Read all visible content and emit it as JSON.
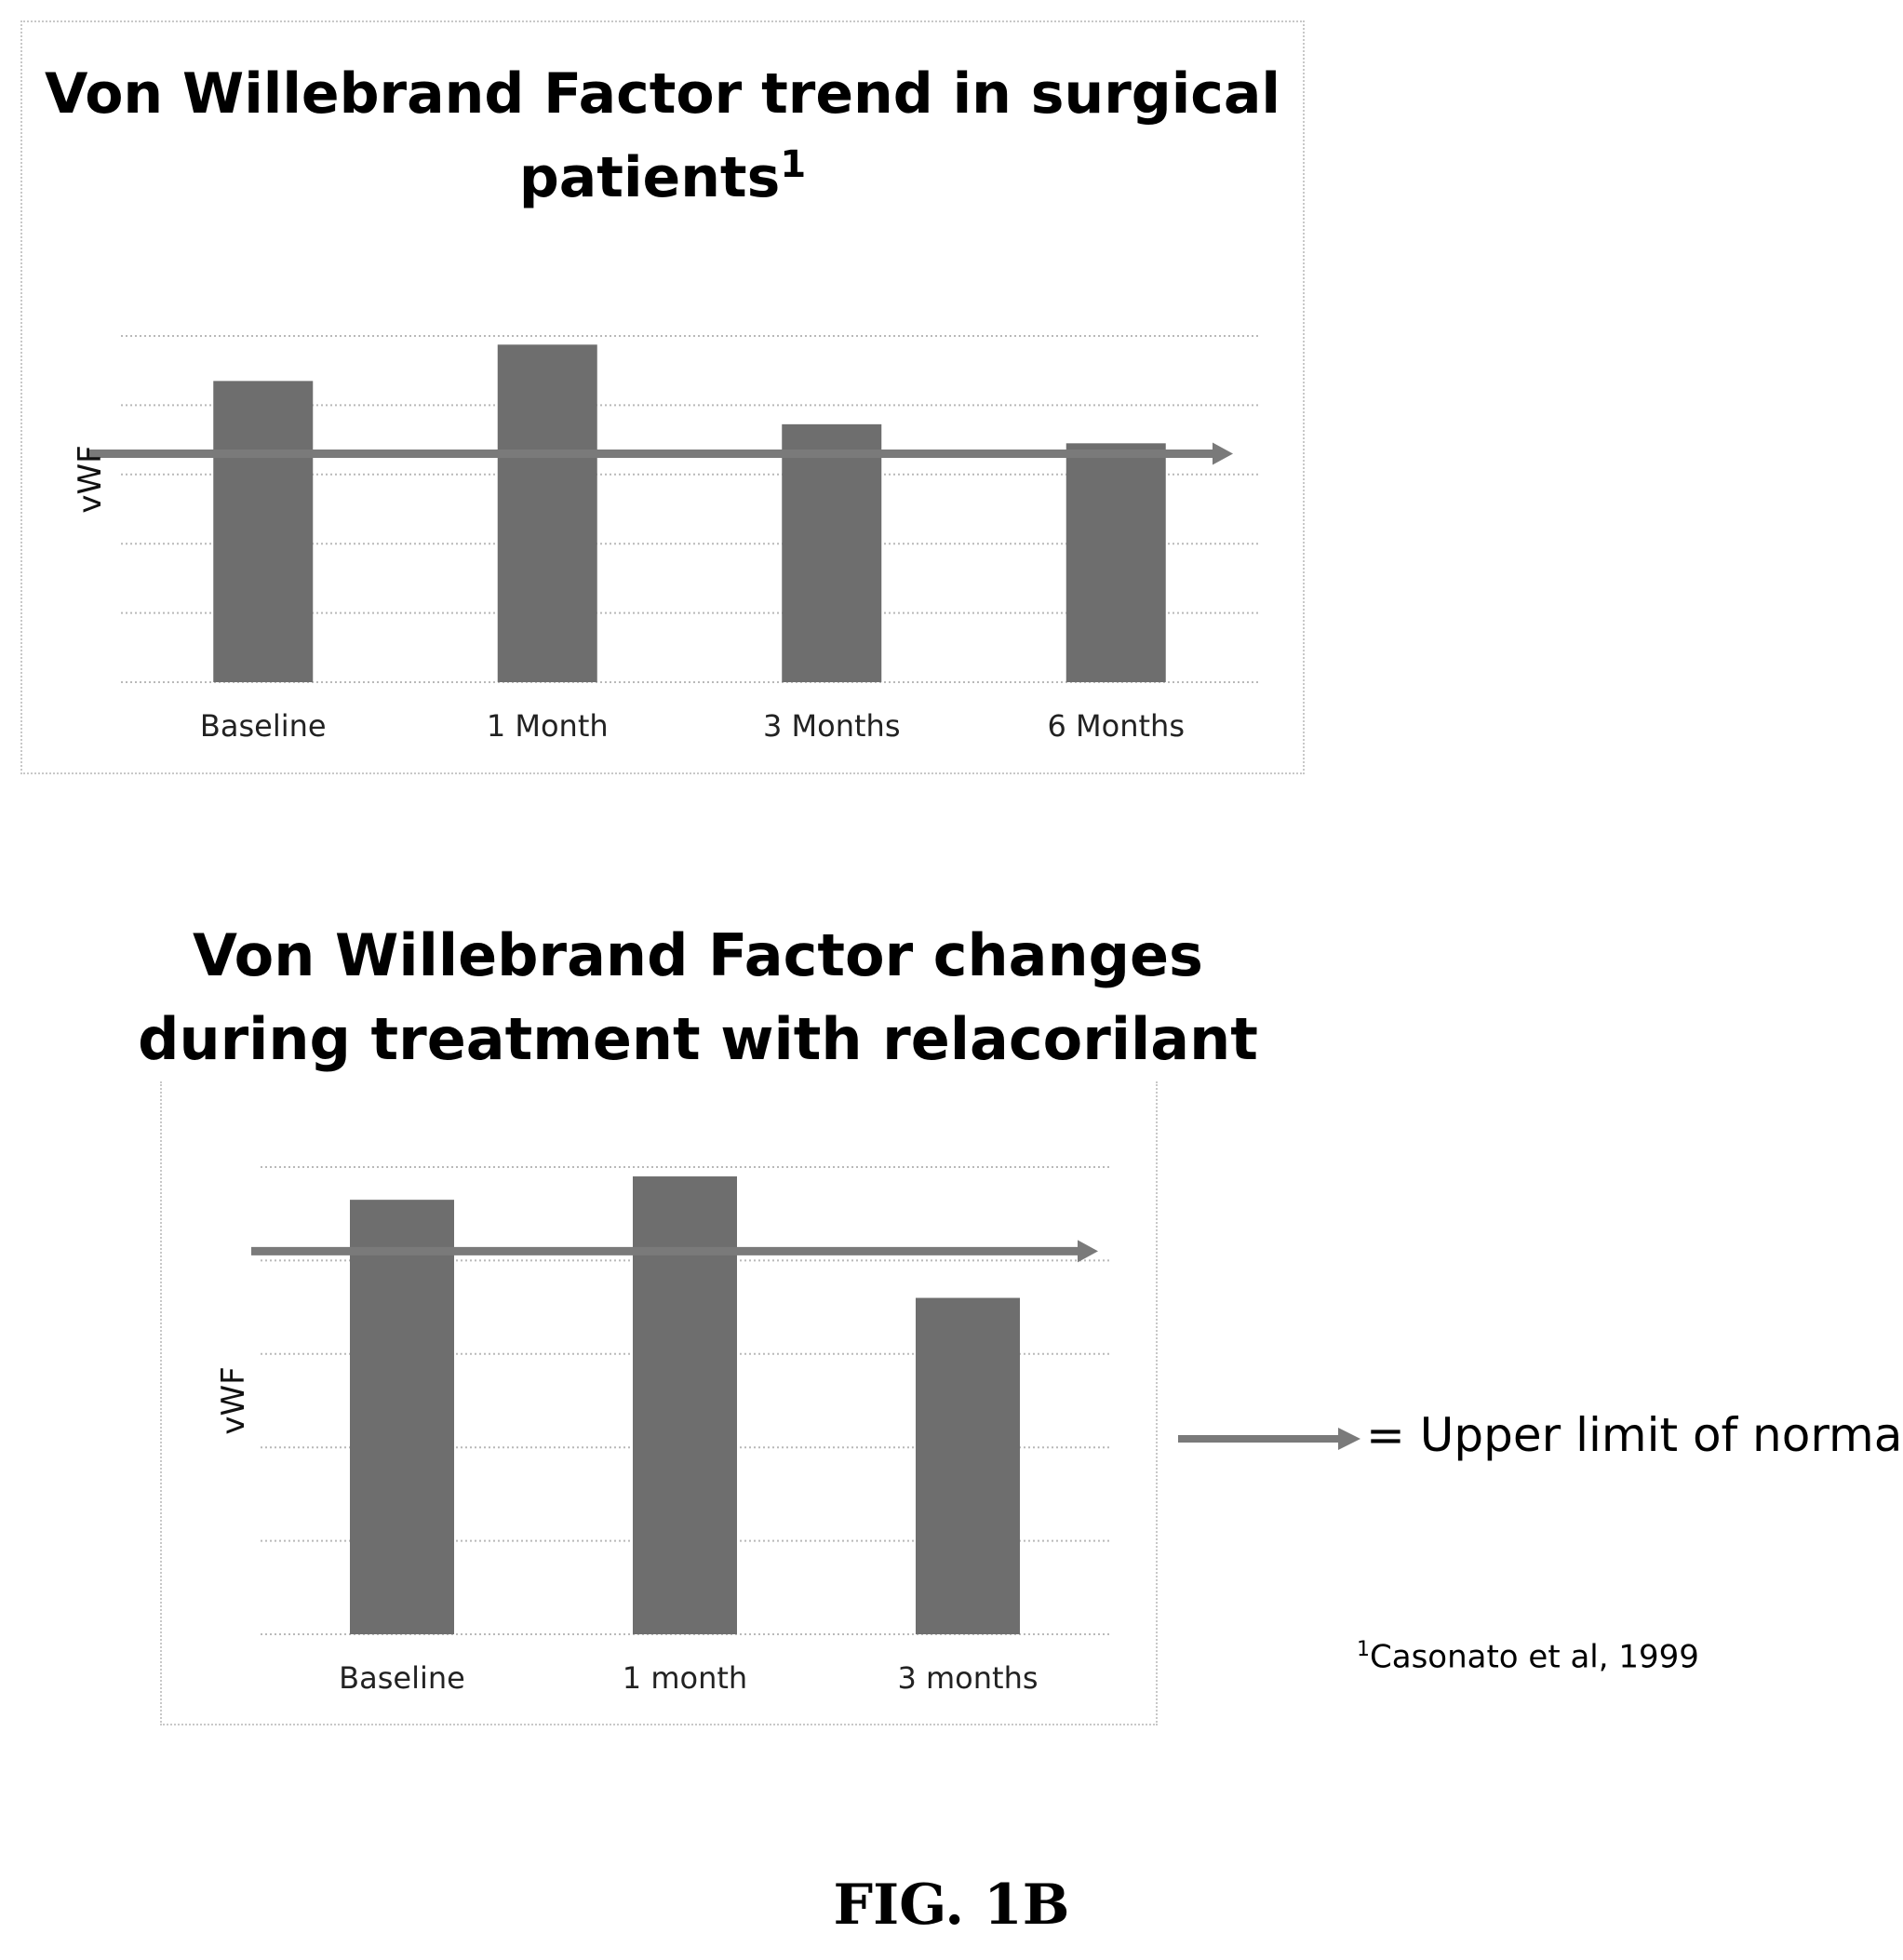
{
  "chart_data": [
    {
      "type": "bar",
      "title": "Von Willebrand Factor trend in surgical patients",
      "title_superscript": "1",
      "ylabel": "vWF",
      "xlabel": "",
      "categories": [
        "Baseline",
        "1 Month",
        "3 Months",
        "6 Months"
      ],
      "values": [
        87,
        97.5,
        74.5,
        69
      ],
      "ylim": [
        0,
        100
      ],
      "reference_line": {
        "value": 66,
        "label": "Upper limit of normal"
      },
      "grid": true,
      "bar_color": "#6e6e6e",
      "line_color": "#7a7a7a"
    },
    {
      "type": "bar",
      "title": "Von Willebrand Factor changes during treatment with relacorilant",
      "ylabel": "vWF",
      "xlabel": "",
      "categories": [
        "Baseline",
        "1 month",
        "3 months"
      ],
      "values": [
        93,
        98,
        72
      ],
      "ylim": [
        0,
        100
      ],
      "reference_line": {
        "value": 82,
        "label": "Upper limit of normal"
      },
      "grid": true,
      "bar_color": "#6e6e6e",
      "line_color": "#7a7a7a"
    }
  ],
  "legend": {
    "text": "= Upper limit of normal",
    "icon": "arrow-right-icon"
  },
  "footnote": {
    "marker": "1",
    "text": "Casonato et al, 1999"
  },
  "figure_label": "FIG. 1B"
}
